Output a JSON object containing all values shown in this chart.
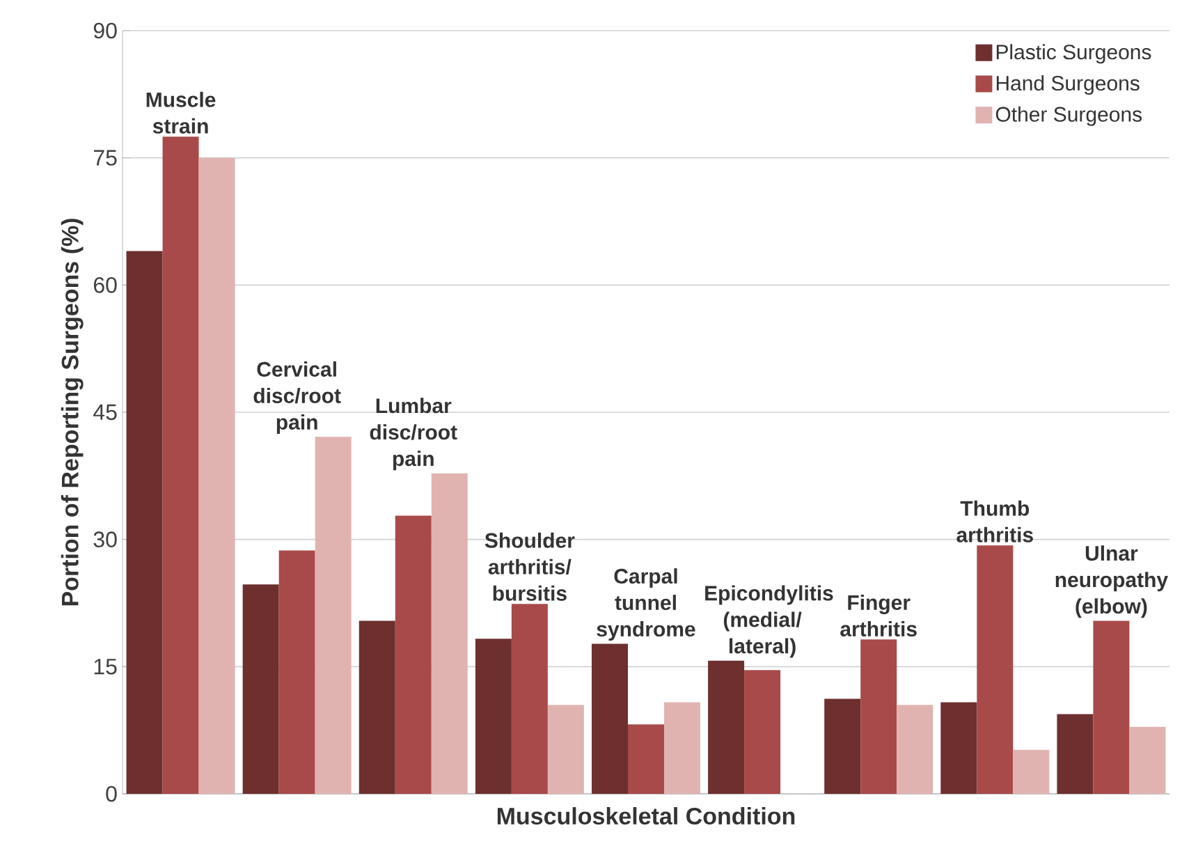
{
  "chart_data": {
    "type": "bar",
    "xlabel": "Musculoskeletal Condition",
    "ylabel": "Portion of Reporting Surgeons (%)",
    "categories": [
      "Muscle strain",
      "Cervical disc/root pain",
      "Lumbar disc/root pain",
      "Shoulder arthritis/ bursitis",
      "Carpal tunnel syndrome",
      "Epicondylitis (medial/ lateral)",
      "Finger arthritis",
      "Thumb arthritis",
      "Ulnar neuropathy (elbow)"
    ],
    "series": [
      {
        "name": "Plastic Surgeons",
        "color": "#6e2f2f",
        "values": [
          64,
          24.7,
          20.4,
          18.3,
          17.7,
          15.7,
          11.2,
          10.8,
          9.4
        ]
      },
      {
        "name": "Hand Surgeons",
        "color": "#a84a4a",
        "values": [
          77.5,
          28.7,
          32.8,
          22.4,
          8.2,
          14.6,
          18.2,
          29.3,
          20.4
        ]
      },
      {
        "name": "Other Surgeons",
        "color": "#e0b3b1",
        "values": [
          75,
          42.1,
          37.8,
          10.5,
          10.8,
          0,
          10.5,
          5.2,
          7.9
        ]
      }
    ],
    "ylim": [
      0,
      90
    ],
    "yticks": [
      0,
      15,
      30,
      45,
      60,
      75,
      90
    ],
    "grid": "y",
    "legend": "top right",
    "tick_labels": "y"
  }
}
